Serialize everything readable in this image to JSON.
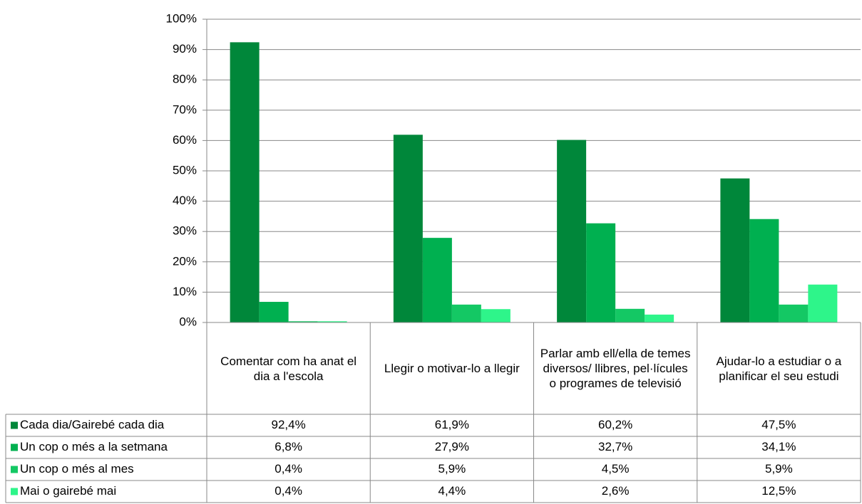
{
  "chart_data": {
    "type": "bar",
    "categories": [
      "Comentar com ha anat el dia a l'escola",
      "Llegir o motivar-lo a llegir",
      "Parlar amb ell/ella de temes diversos/ llibres, pel·lícules o programes de televisió",
      "Ajudar-lo a estudiar o a planificar el seu estudi"
    ],
    "series": [
      {
        "name": "Cada dia/Gairebé cada dia",
        "color": "#00873a",
        "values": [
          92.4,
          61.9,
          60.2,
          47.5
        ],
        "value_labels": [
          "92,4%",
          "61,9%",
          "60,2%",
          "47,5%"
        ]
      },
      {
        "name": "Un cop o més a la setmana",
        "color": "#00b050",
        "values": [
          6.8,
          27.9,
          32.7,
          34.1
        ],
        "value_labels": [
          "6,8%",
          "27,9%",
          "32,7%",
          "34,1%"
        ]
      },
      {
        "name": "Un cop o més al mes",
        "color": "#14c864",
        "values": [
          0.4,
          5.9,
          4.5,
          5.9
        ],
        "value_labels": [
          "0,4%",
          "5,9%",
          "4,5%",
          "5,9%"
        ]
      },
      {
        "name": "Mai o gairebé mai",
        "color": "#2ef58a",
        "values": [
          0.4,
          4.4,
          2.6,
          12.5
        ],
        "value_labels": [
          "0,4%",
          "4,4%",
          "2,6%",
          "12,5%"
        ]
      }
    ],
    "ylim": [
      0,
      100
    ],
    "yticks": [
      {
        "value": 0,
        "label": "0%"
      },
      {
        "value": 10,
        "label": "10%"
      },
      {
        "value": 20,
        "label": "20%"
      },
      {
        "value": 30,
        "label": "30%"
      },
      {
        "value": 40,
        "label": "40%"
      },
      {
        "value": 50,
        "label": "50%"
      },
      {
        "value": 60,
        "label": "60%"
      },
      {
        "value": 70,
        "label": "70%"
      },
      {
        "value": 80,
        "label": "80%"
      },
      {
        "value": 90,
        "label": "90%"
      },
      {
        "value": 100,
        "label": "100%"
      }
    ],
    "grid": true
  }
}
